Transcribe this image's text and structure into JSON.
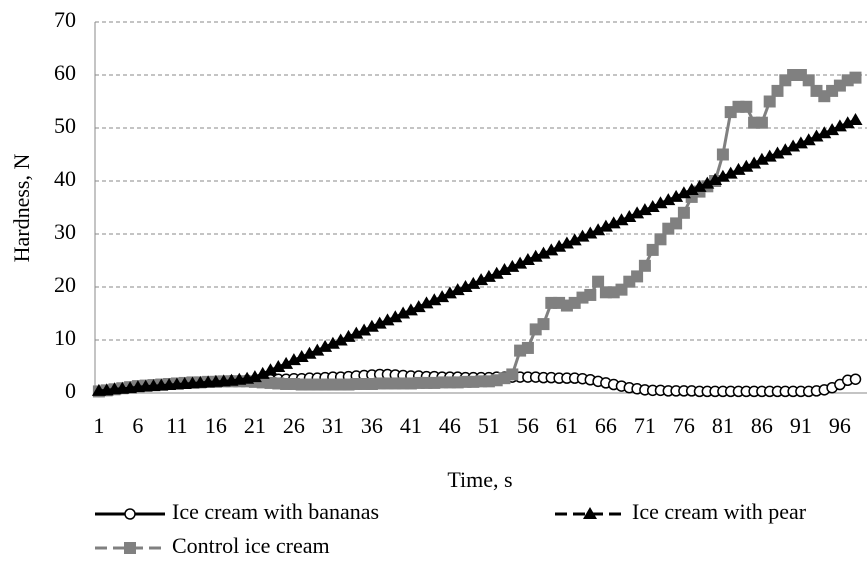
{
  "chart_data": {
    "type": "line",
    "y_label": "Hardness, N",
    "x_label": "Time, s",
    "categories": [
      1,
      null,
      null,
      null,
      null,
      6,
      null,
      null,
      null,
      null,
      11,
      null,
      null,
      null,
      null,
      16,
      null,
      null,
      null,
      null,
      21,
      null,
      null,
      null,
      null,
      26,
      null,
      null,
      null,
      null,
      31,
      null,
      null,
      null,
      null,
      36,
      null,
      null,
      null,
      null,
      41,
      null,
      null,
      null,
      null,
      46,
      null,
      null,
      null,
      null,
      51,
      null,
      null,
      null,
      null,
      56,
      null,
      null,
      null,
      null,
      61,
      null,
      null,
      null,
      null,
      66,
      null,
      null,
      null,
      null,
      71,
      null,
      null,
      null,
      null,
      76,
      null,
      null,
      null,
      null,
      81,
      null,
      null,
      null,
      null,
      86,
      null,
      null,
      null,
      null,
      91,
      null,
      null,
      null,
      null,
      96,
      null,
      null
    ],
    "series": [
      {
        "name": "Ice cream with bananas",
        "color": "#000000",
        "marker": "circle",
        "dash": false,
        "values": [
          0.3,
          0.5,
          0.7,
          0.9,
          1.1,
          1.3,
          1.4,
          1.5,
          1.6,
          1.7,
          1.8,
          1.9,
          2,
          2,
          2.1,
          2.2,
          2.2,
          2.3,
          2.3,
          2.4,
          2.4,
          2.5,
          2.5,
          2.6,
          2.6,
          2.7,
          2.7,
          2.8,
          2.8,
          2.9,
          3,
          3,
          3.1,
          3.2,
          3.3,
          3.4,
          3.5,
          3.5,
          3.4,
          3.3,
          3.2,
          3.2,
          3.1,
          3.1,
          3,
          3,
          3,
          2.9,
          2.9,
          2.9,
          2.9,
          3,
          3,
          3,
          3,
          3,
          3,
          2.9,
          2.9,
          2.8,
          2.8,
          2.8,
          2.7,
          2.5,
          2.2,
          1.9,
          1.6,
          1.3,
          1,
          0.8,
          0.6,
          0.5,
          0.5,
          0.4,
          0.4,
          0.4,
          0.4,
          0.3,
          0.3,
          0.3,
          0.3,
          0.3,
          0.3,
          0.3,
          0.3,
          0.3,
          0.3,
          0.3,
          0.3,
          0.3,
          0.3,
          0.3,
          0.4,
          0.6,
          1,
          1.6,
          2.4,
          2.6
        ]
      },
      {
        "name": "Ice cream with pear",
        "color": "#000000",
        "marker": "triangle",
        "dash": true,
        "values": [
          0.4,
          0.5,
          0.7,
          0.8,
          0.9,
          1.1,
          1.2,
          1.3,
          1.4,
          1.5,
          1.6,
          1.7,
          1.8,
          1.9,
          2,
          2.1,
          2.2,
          2.3,
          2.5,
          2.7,
          3.0,
          3.6,
          4.3,
          4.9,
          5.5,
          6.2,
          6.8,
          7.4,
          8.0,
          8.7,
          9.3,
          9.9,
          10.6,
          11.2,
          11.8,
          12.5,
          13.1,
          13.7,
          14.3,
          15.0,
          15.6,
          16.2,
          16.9,
          17.5,
          18.1,
          18.8,
          19.4,
          20.0,
          20.6,
          21.3,
          21.9,
          22.5,
          23.2,
          23.8,
          24.4,
          25.1,
          25.7,
          26.3,
          26.9,
          27.6,
          28.2,
          28.8,
          29.5,
          30.1,
          30.7,
          31.4,
          32.0,
          32.6,
          33.2,
          33.9,
          34.5,
          35.1,
          35.8,
          36.4,
          37.0,
          37.7,
          38.3,
          38.9,
          39.5,
          40.2,
          40.8,
          41.4,
          42.1,
          42.7,
          43.3,
          44.0,
          44.6,
          45.2,
          45.8,
          46.5,
          47.1,
          47.7,
          48.4,
          49.0,
          49.6,
          50.3,
          50.9,
          51.5
        ]
      },
      {
        "name": "Control ice cream",
        "color": "#808080",
        "marker": "square",
        "dash": true,
        "values": [
          0.3,
          0.5,
          0.7,
          0.9,
          1.1,
          1.3,
          1.4,
          1.5,
          1.6,
          1.7,
          1.8,
          1.9,
          2,
          2,
          2.1,
          2.1,
          2.2,
          2.2,
          2.2,
          2.2,
          2.1,
          2,
          1.9,
          1.8,
          1.7,
          1.7,
          1.6,
          1.6,
          1.6,
          1.6,
          1.6,
          1.6,
          1.6,
          1.7,
          1.7,
          1.7,
          1.8,
          1.8,
          1.8,
          1.8,
          1.8,
          1.9,
          1.9,
          1.9,
          2,
          2,
          2,
          2.1,
          2.1,
          2.2,
          2.2,
          2.4,
          2.8,
          3.5,
          8,
          8.5,
          12,
          13,
          17,
          17,
          16.5,
          17,
          18,
          18.5,
          21,
          19,
          19,
          19.5,
          21,
          22,
          24,
          27,
          29,
          31,
          32,
          34,
          37,
          38,
          39,
          40,
          45,
          53,
          54,
          54,
          51,
          51,
          55,
          57,
          59,
          60,
          60,
          59,
          57,
          56,
          57,
          58,
          59,
          59.5
        ]
      }
    ],
    "ylim": [
      0,
      70
    ],
    "yticks": [
      0,
      10,
      20,
      30,
      40,
      50,
      60,
      70
    ],
    "grid": true,
    "legend": "bottom"
  }
}
